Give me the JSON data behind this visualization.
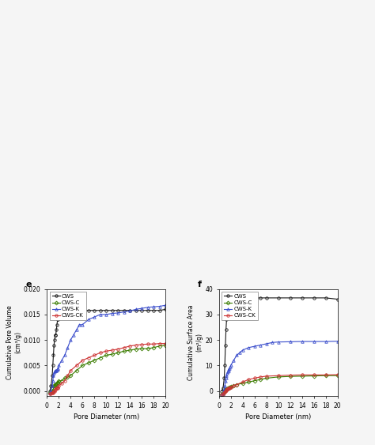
{
  "chart_e": {
    "title": "e",
    "xlabel": "Pore Diameter (nm)",
    "ylabel": "Cumulative Pore Volume\n(cm³/g)",
    "xlim": [
      0,
      20
    ],
    "ylim": [
      -0.001,
      0.02
    ],
    "yticks": [
      0.0,
      0.005,
      0.01,
      0.015,
      0.02
    ],
    "xticks": [
      0,
      2,
      4,
      6,
      8,
      10,
      12,
      14,
      16,
      18,
      20
    ],
    "series": {
      "CWS": {
        "color": "#1a1a1a",
        "marker": "o",
        "x": [
          0.5,
          0.7,
          0.9,
          1.0,
          1.1,
          1.2,
          1.3,
          1.4,
          1.5,
          1.6,
          1.7,
          1.8,
          1.9,
          2.0,
          2.1,
          2.2,
          2.5,
          3.0,
          3.5,
          4.0,
          5.0,
          6.0,
          7.0,
          8.0,
          9.0,
          10.0,
          11.0,
          12.0,
          13.0,
          14.0,
          15.0,
          16.0,
          17.0,
          18.0,
          19.0,
          20.0
        ],
        "y": [
          0.0,
          0.001,
          0.003,
          0.005,
          0.007,
          0.009,
          0.01,
          0.011,
          0.011,
          0.012,
          0.013,
          0.014,
          0.014,
          0.015,
          0.015,
          0.015,
          0.015,
          0.0155,
          0.0155,
          0.0156,
          0.0157,
          0.0158,
          0.0158,
          0.0158,
          0.0158,
          0.0158,
          0.0158,
          0.0158,
          0.0158,
          0.0158,
          0.0158,
          0.0158,
          0.0158,
          0.0158,
          0.0158,
          0.016
        ]
      },
      "CWS-C": {
        "color": "#3a7d00",
        "marker": "D",
        "x": [
          0.5,
          0.7,
          0.9,
          1.0,
          1.1,
          1.2,
          1.3,
          1.4,
          1.5,
          1.6,
          1.7,
          1.8,
          1.9,
          2.0,
          2.5,
          3.0,
          3.5,
          4.0,
          5.0,
          6.0,
          7.0,
          8.0,
          9.0,
          10.0,
          11.0,
          12.0,
          13.0,
          14.0,
          15.0,
          16.0,
          17.0,
          18.0,
          19.0,
          20.0
        ],
        "y": [
          -0.0003,
          -0.0002,
          0.0,
          0.0,
          0.0005,
          0.001,
          0.001,
          0.0012,
          0.0013,
          0.0014,
          0.0015,
          0.0016,
          0.0017,
          0.002,
          0.002,
          0.0025,
          0.0027,
          0.003,
          0.004,
          0.005,
          0.0055,
          0.006,
          0.0065,
          0.007,
          0.0072,
          0.0075,
          0.0078,
          0.008,
          0.0082,
          0.0083,
          0.0083,
          0.0085,
          0.0088,
          0.009
        ]
      },
      "CWS-K": {
        "color": "#3a4dcc",
        "marker": "^",
        "x": [
          0.5,
          0.7,
          0.9,
          1.0,
          1.1,
          1.2,
          1.3,
          1.4,
          1.5,
          1.6,
          1.7,
          1.8,
          1.9,
          2.0,
          2.5,
          3.0,
          3.5,
          4.0,
          4.5,
          5.0,
          5.5,
          6.0,
          7.0,
          8.0,
          9.0,
          10.0,
          11.0,
          12.0,
          13.0,
          14.0,
          15.0,
          16.0,
          17.0,
          18.0,
          19.0,
          20.0
        ],
        "y": [
          -0.0003,
          -0.0001,
          0.001,
          0.002,
          0.003,
          0.0035,
          0.0038,
          0.004,
          0.004,
          0.004,
          0.0042,
          0.0043,
          0.0045,
          0.005,
          0.006,
          0.007,
          0.0085,
          0.01,
          0.011,
          0.012,
          0.013,
          0.013,
          0.014,
          0.0145,
          0.015,
          0.015,
          0.0152,
          0.0153,
          0.0155,
          0.0157,
          0.016,
          0.0162,
          0.0164,
          0.0165,
          0.0166,
          0.0168
        ]
      },
      "CWS-CK": {
        "color": "#cc3333",
        "marker": "o",
        "x": [
          0.5,
          0.7,
          0.9,
          1.0,
          1.1,
          1.2,
          1.3,
          1.4,
          1.5,
          1.6,
          1.7,
          1.8,
          1.9,
          2.0,
          2.5,
          3.0,
          3.5,
          4.0,
          5.0,
          6.0,
          7.0,
          8.0,
          9.0,
          10.0,
          11.0,
          12.0,
          13.0,
          14.0,
          15.0,
          16.0,
          17.0,
          18.0,
          19.0,
          20.0
        ],
        "y": [
          -0.0005,
          -0.0005,
          -0.0004,
          -0.0003,
          -0.0002,
          -0.0001,
          0.0,
          0.0002,
          0.0004,
          0.0005,
          0.0006,
          0.0006,
          0.0007,
          0.001,
          0.0015,
          0.002,
          0.003,
          0.004,
          0.005,
          0.006,
          0.0065,
          0.007,
          0.0075,
          0.0078,
          0.008,
          0.0082,
          0.0085,
          0.0088,
          0.009,
          0.0091,
          0.0092,
          0.0092,
          0.0093,
          0.0093
        ]
      }
    }
  },
  "chart_f": {
    "title": "f",
    "xlabel": "Pore Diameter (nm)",
    "ylabel": "Cumulative Surface Area\n(m²/g)",
    "xlim": [
      0,
      20
    ],
    "ylim": [
      -2,
      40
    ],
    "yticks": [
      0,
      10,
      20,
      30,
      40
    ],
    "xticks": [
      0,
      2,
      4,
      6,
      8,
      10,
      12,
      14,
      16,
      18,
      20
    ],
    "series": {
      "CWS": {
        "color": "#1a1a1a",
        "marker": "o",
        "x": [
          0.5,
          0.7,
          0.9,
          1.0,
          1.1,
          1.2,
          1.3,
          1.4,
          1.5,
          1.6,
          1.7,
          1.8,
          1.9,
          2.0,
          2.1,
          2.2,
          2.5,
          3.0,
          4.0,
          5.0,
          6.0,
          7.0,
          8.0,
          10.0,
          12.0,
          14.0,
          16.0,
          18.0,
          20.0
        ],
        "y": [
          0,
          1,
          5,
          10,
          18,
          24,
          28,
          31,
          33,
          34,
          35,
          35.5,
          36,
          36.5,
          36.5,
          36.5,
          36.5,
          36.5,
          36.5,
          36.5,
          36.5,
          36.5,
          36.5,
          36.5,
          36.5,
          36.5,
          36.5,
          36.5,
          36.0
        ]
      },
      "CWS-C": {
        "color": "#3a7d00",
        "marker": "D",
        "x": [
          0.5,
          0.7,
          0.9,
          1.0,
          1.1,
          1.2,
          1.3,
          1.4,
          1.5,
          1.6,
          1.7,
          1.8,
          1.9,
          2.0,
          2.5,
          3.0,
          4.0,
          5.0,
          6.0,
          7.0,
          8.0,
          10.0,
          12.0,
          14.0,
          16.0,
          18.0,
          20.0
        ],
        "y": [
          -1.5,
          -1.2,
          -0.5,
          0,
          0.3,
          0.5,
          0.7,
          0.9,
          1.0,
          1.1,
          1.2,
          1.3,
          1.5,
          1.8,
          2.0,
          2.5,
          3.0,
          3.5,
          4.0,
          4.5,
          5.0,
          5.5,
          5.7,
          5.8,
          5.9,
          6.0,
          6.0
        ]
      },
      "CWS-K": {
        "color": "#3a4dcc",
        "marker": "^",
        "x": [
          0.5,
          0.7,
          0.9,
          1.0,
          1.1,
          1.2,
          1.3,
          1.4,
          1.5,
          1.6,
          1.7,
          1.8,
          1.9,
          2.0,
          2.5,
          3.0,
          3.5,
          4.0,
          5.0,
          6.0,
          7.0,
          8.0,
          9.0,
          10.0,
          12.0,
          14.0,
          16.0,
          18.0,
          20.0
        ],
        "y": [
          -1.5,
          -1.0,
          0.5,
          2,
          4,
          5,
          6,
          7,
          7.5,
          8,
          8.5,
          9,
          9.5,
          10,
          12,
          14,
          15,
          16,
          17,
          17.5,
          18,
          18.5,
          19,
          19.2,
          19.3,
          19.4,
          19.4,
          19.4,
          19.5
        ]
      },
      "CWS-CK": {
        "color": "#cc3333",
        "marker": "o",
        "x": [
          0.5,
          0.7,
          0.9,
          1.0,
          1.1,
          1.2,
          1.3,
          1.4,
          1.5,
          1.6,
          1.7,
          1.8,
          1.9,
          2.0,
          2.5,
          3.0,
          4.0,
          5.0,
          6.0,
          7.0,
          8.0,
          10.0,
          12.0,
          14.0,
          16.0,
          18.0,
          20.0
        ],
        "y": [
          -1.5,
          -1.3,
          -0.8,
          -0.3,
          0.0,
          0.3,
          0.5,
          0.7,
          0.9,
          1.0,
          1.1,
          1.2,
          1.3,
          1.5,
          2.0,
          2.5,
          3.5,
          4.5,
          5.0,
          5.5,
          5.8,
          6.0,
          6.2,
          6.3,
          6.3,
          6.3,
          6.4
        ]
      }
    }
  },
  "figure_bg": "#f5f5f5",
  "panel_bg": "#ffffff"
}
